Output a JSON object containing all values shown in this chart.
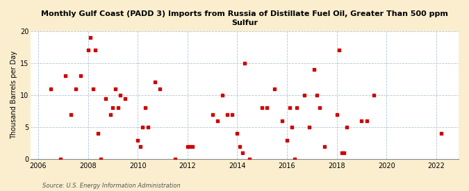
{
  "title": "Monthly Gulf Coast (PADD 3) Imports from Russia of Distillate Fuel Oil, Greater Than 500 ppm\nSulfur",
  "ylabel": "Thousand Barrels per Day",
  "source": "Source: U.S. Energy Information Administration",
  "background_color": "#faeecf",
  "plot_background": "#ffffff",
  "marker_color": "#cc0000",
  "ylim": [
    0,
    20
  ],
  "yticks": [
    0,
    5,
    10,
    15,
    20
  ],
  "xlim_start": 2005.7,
  "xlim_end": 2022.9,
  "xticks": [
    2006,
    2008,
    2010,
    2012,
    2014,
    2016,
    2018,
    2020,
    2022
  ],
  "data_points": [
    [
      2006.5,
      11
    ],
    [
      2006.9,
      0
    ],
    [
      2007.1,
      13
    ],
    [
      2007.3,
      7
    ],
    [
      2007.5,
      11
    ],
    [
      2007.7,
      13
    ],
    [
      2008.0,
      17
    ],
    [
      2008.1,
      19
    ],
    [
      2008.2,
      11
    ],
    [
      2008.3,
      17
    ],
    [
      2008.4,
      4
    ],
    [
      2008.5,
      0
    ],
    [
      2008.7,
      9.5
    ],
    [
      2008.9,
      7
    ],
    [
      2009.0,
      8
    ],
    [
      2009.1,
      11
    ],
    [
      2009.2,
      8
    ],
    [
      2009.3,
      10
    ],
    [
      2009.5,
      9.5
    ],
    [
      2010.0,
      3
    ],
    [
      2010.1,
      2
    ],
    [
      2010.2,
      5
    ],
    [
      2010.3,
      8
    ],
    [
      2010.4,
      5
    ],
    [
      2010.7,
      12
    ],
    [
      2010.9,
      11
    ],
    [
      2011.5,
      0
    ],
    [
      2012.0,
      2
    ],
    [
      2012.1,
      2
    ],
    [
      2012.2,
      2
    ],
    [
      2013.0,
      7
    ],
    [
      2013.2,
      6
    ],
    [
      2013.4,
      10
    ],
    [
      2013.6,
      7
    ],
    [
      2013.8,
      7
    ],
    [
      2014.0,
      4
    ],
    [
      2014.1,
      2
    ],
    [
      2014.2,
      1
    ],
    [
      2014.3,
      15
    ],
    [
      2014.5,
      0
    ],
    [
      2015.0,
      8
    ],
    [
      2015.2,
      8
    ],
    [
      2015.5,
      11
    ],
    [
      2015.8,
      6
    ],
    [
      2016.0,
      3
    ],
    [
      2016.1,
      8
    ],
    [
      2016.2,
      5
    ],
    [
      2016.3,
      0
    ],
    [
      2016.4,
      8
    ],
    [
      2016.7,
      10
    ],
    [
      2016.9,
      5
    ],
    [
      2017.1,
      14
    ],
    [
      2017.2,
      10
    ],
    [
      2017.3,
      8
    ],
    [
      2017.5,
      2
    ],
    [
      2018.0,
      7
    ],
    [
      2018.1,
      17
    ],
    [
      2018.2,
      1
    ],
    [
      2018.3,
      1
    ],
    [
      2018.4,
      5
    ],
    [
      2019.0,
      6
    ],
    [
      2019.2,
      6
    ],
    [
      2019.5,
      10
    ],
    [
      2022.2,
      4
    ]
  ]
}
